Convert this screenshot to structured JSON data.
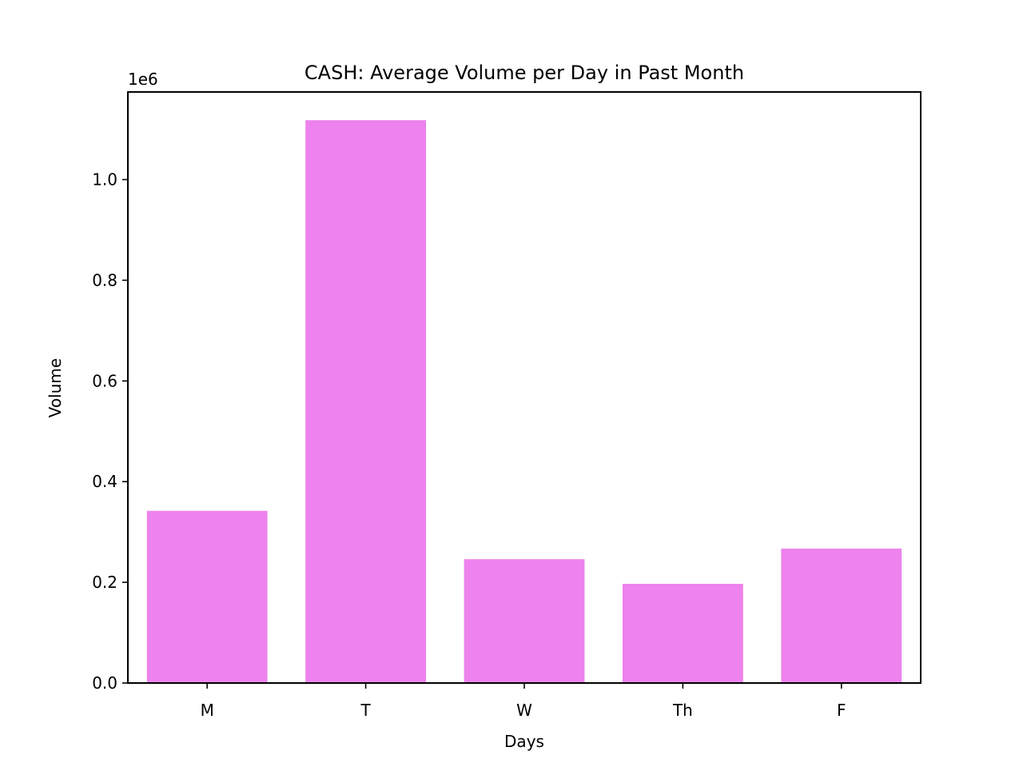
{
  "chart_data": {
    "type": "bar",
    "title": "CASH: Average Volume per Day in Past Month",
    "xlabel": "Days",
    "ylabel": "Volume",
    "y_offset_label": "1e6",
    "categories": [
      "M",
      "T",
      "W",
      "Th",
      "F"
    ],
    "values": [
      342000,
      1118000,
      246000,
      197000,
      267000
    ],
    "ylim": [
      0,
      1174000
    ],
    "yticks": [
      0,
      200000,
      400000,
      600000,
      800000,
      1000000
    ],
    "ytick_labels": [
      "0.0",
      "0.2",
      "0.4",
      "0.6",
      "0.8",
      "1.0"
    ],
    "bar_color": "#ee82ee",
    "grid": false,
    "legend": "none"
  }
}
